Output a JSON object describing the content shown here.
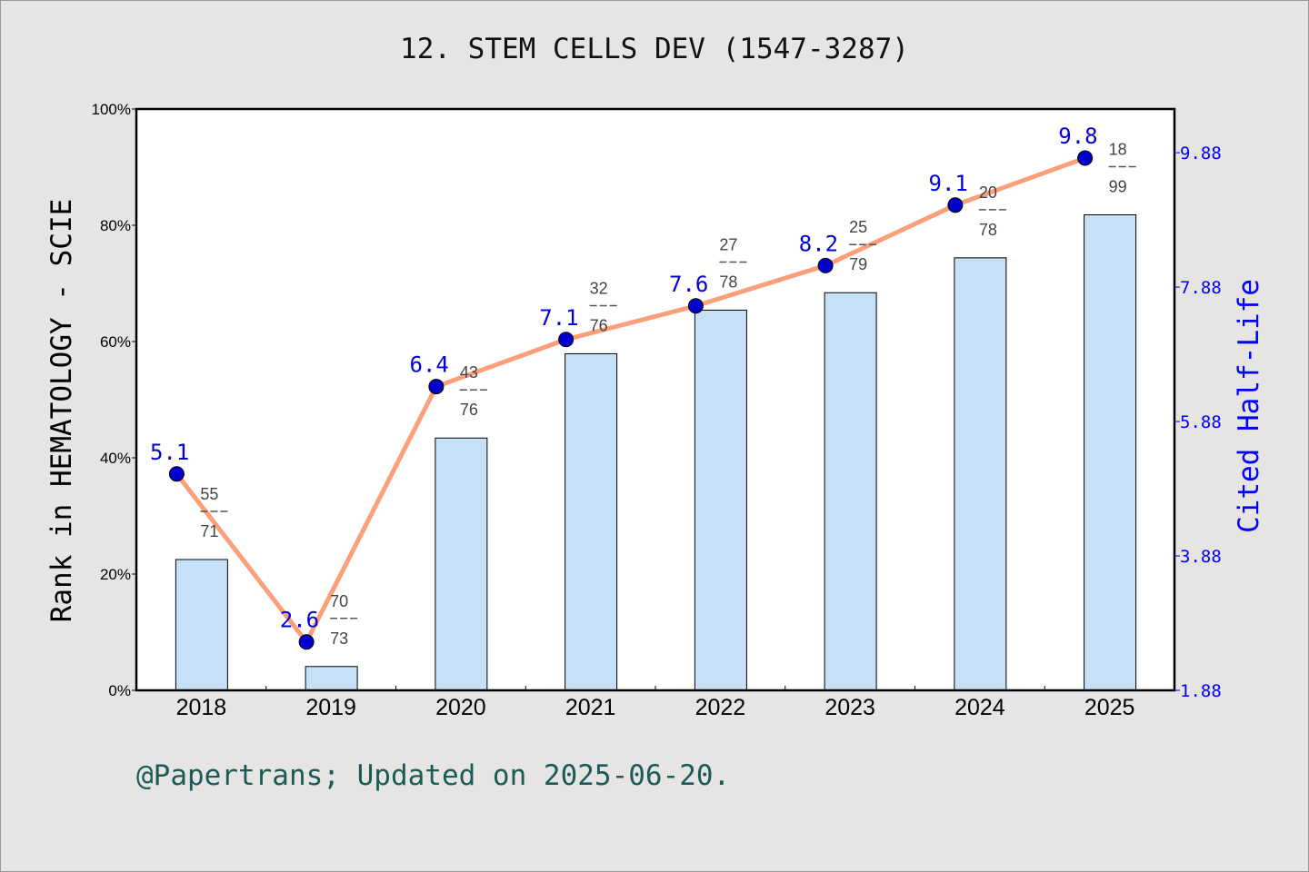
{
  "title": "12. STEM CELLS DEV (1547-3287)",
  "footer": "@Papertrans; Updated on 2025-06-20.",
  "chart_data": {
    "type": "bar+line",
    "categories": [
      "2018",
      "2019",
      "2020",
      "2021",
      "2022",
      "2023",
      "2024",
      "2025"
    ],
    "bar_series": {
      "values": [
        22.5,
        4.1,
        43.4,
        57.9,
        65.4,
        68.4,
        74.4,
        81.8
      ],
      "color": "#c6e0f7",
      "rank": [
        55,
        70,
        43,
        32,
        27,
        25,
        20,
        18
      ],
      "total": [
        71,
        73,
        76,
        76,
        78,
        79,
        78,
        99
      ]
    },
    "line_series": {
      "values": [
        5.1,
        2.6,
        6.4,
        7.1,
        7.6,
        8.2,
        9.1,
        9.8
      ],
      "labels": [
        "5.1",
        "2.6",
        "6.4",
        "7.1",
        "7.6",
        "8.2",
        "9.1",
        "9.8"
      ],
      "line_color": "#ff9e7a",
      "marker_color": "#0000cc"
    },
    "ylabel": "Rank in HEMATOLOGY - SCIE",
    "ylabel_right": "Cited Half-Life",
    "ylim": [
      0,
      100
    ],
    "yticks": [
      "0%",
      "20%",
      "40%",
      "60%",
      "80%",
      "100%"
    ],
    "ylim_right": [
      1.88,
      10.53
    ],
    "yticks_right": [
      "1.88",
      "3.88",
      "5.88",
      "7.88",
      "9.88"
    ],
    "right_axis_color": "#0000ff",
    "grid": false
  }
}
